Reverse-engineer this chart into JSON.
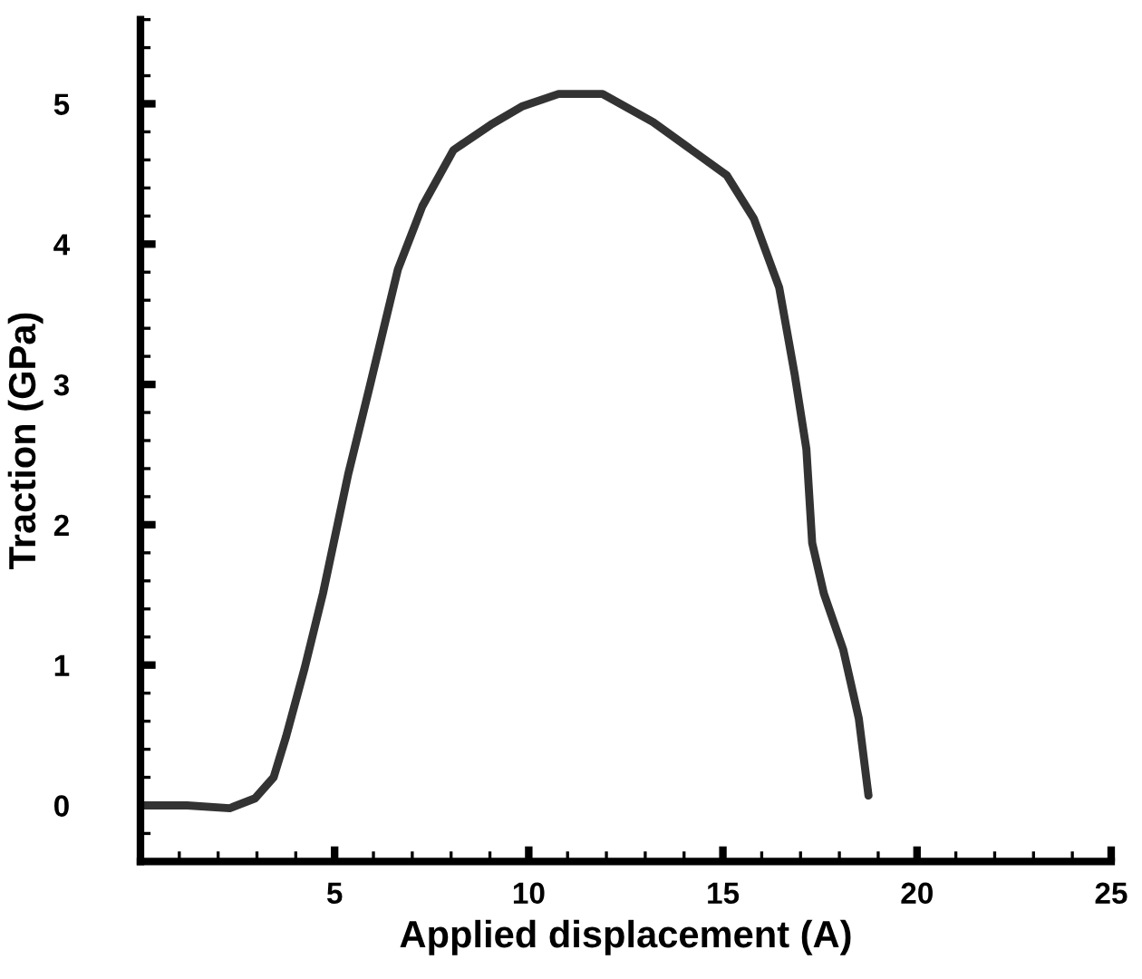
{
  "chart_data": {
    "type": "line",
    "xlabel": "Applied displacement (A)",
    "ylabel": "Traction (GPa)",
    "xlim": [
      0,
      25
    ],
    "ylim": [
      -0.4,
      5.6
    ],
    "xticks": [
      5,
      10,
      15,
      20,
      25
    ],
    "yticks": [
      0,
      1,
      2,
      3,
      4,
      5
    ],
    "grid": false,
    "legend": false,
    "marker": "none",
    "line_style": "solid",
    "series": [
      {
        "color": "#333333",
        "x": [
          0.08,
          1.2,
          2.3,
          2.95,
          3.43,
          3.75,
          4.23,
          4.7,
          5.35,
          5.9,
          6.63,
          7.26,
          8.06,
          9.02,
          9.82,
          10.77,
          11.9,
          13.2,
          15.1,
          15.8,
          16.45,
          16.85,
          17.15,
          17.3,
          17.6,
          18.1,
          18.5,
          18.75
        ],
        "values": [
          0.0,
          0.0,
          -0.02,
          0.05,
          0.2,
          0.49,
          0.98,
          1.51,
          2.36,
          2.98,
          3.82,
          4.27,
          4.67,
          4.85,
          4.98,
          5.07,
          5.07,
          4.87,
          4.49,
          4.18,
          3.69,
          3.07,
          2.54,
          1.87,
          1.51,
          1.11,
          0.62,
          0.07
        ]
      }
    ]
  }
}
